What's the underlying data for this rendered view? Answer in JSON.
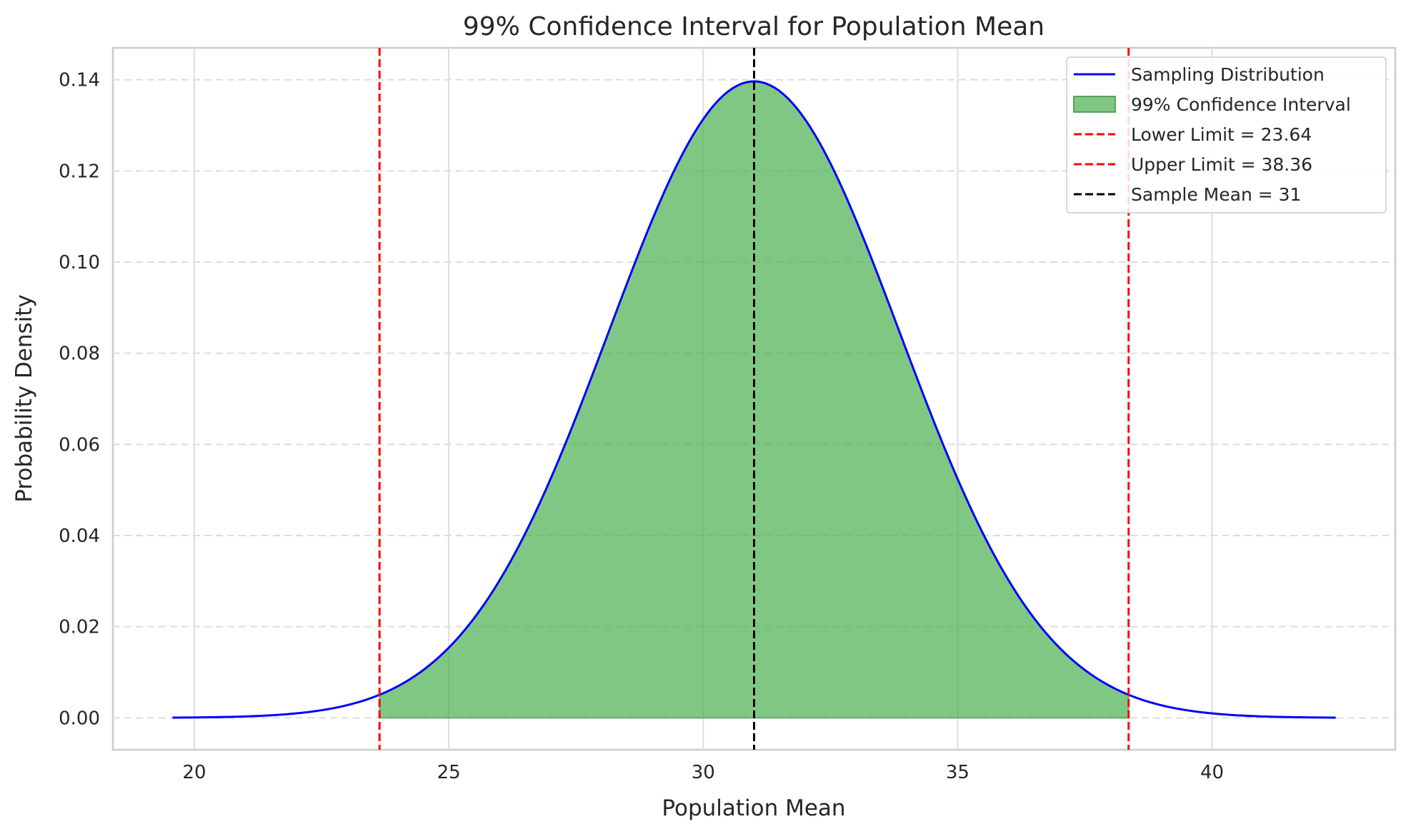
{
  "chart_data": {
    "type": "line",
    "title": "99% Confidence Interval for Population Mean",
    "xlabel": "Population Mean",
    "ylabel": "Probability Density",
    "xlim": [
      18.4,
      43.6
    ],
    "ylim": [
      -0.007,
      0.147
    ],
    "x_ticks": [
      20,
      25,
      30,
      35,
      40
    ],
    "x_tick_labels": [
      "20",
      "25",
      "30",
      "35",
      "40"
    ],
    "y_ticks": [
      0.0,
      0.02,
      0.04,
      0.06,
      0.08,
      0.1,
      0.12,
      0.14
    ],
    "y_tick_labels": [
      "0.00",
      "0.02",
      "0.04",
      "0.06",
      "0.08",
      "0.10",
      "0.12",
      "0.14"
    ],
    "grid": true,
    "legend_position": "top-right",
    "distribution": {
      "family": "normal",
      "mean": 31,
      "std": 2.857,
      "x_range": [
        19.57,
        42.43
      ]
    },
    "shaded_interval": [
      23.64,
      38.36
    ],
    "series": [
      {
        "name": "Sampling Distribution",
        "kind": "line",
        "color": "#0000ff"
      },
      {
        "name": "99% Confidence Interval",
        "kind": "fill",
        "color": "#4caf50"
      },
      {
        "name": "Lower Limit = 23.64",
        "kind": "vline",
        "x": 23.64,
        "color": "#ff0000"
      },
      {
        "name": "Upper Limit = 38.36",
        "kind": "vline",
        "x": 38.36,
        "color": "#ff0000"
      },
      {
        "name": "Sample Mean = 31",
        "kind": "vline",
        "x": 31,
        "color": "#000000"
      }
    ]
  }
}
